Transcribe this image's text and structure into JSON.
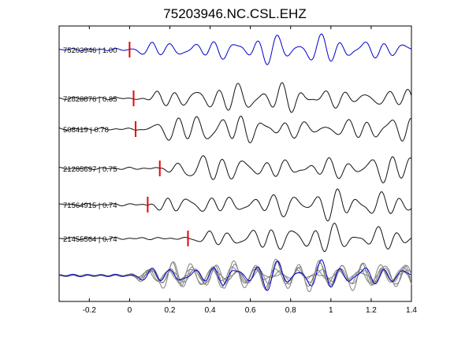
{
  "chart_data": {
    "type": "line",
    "title": "75203946.NC.CSL.EHZ",
    "xlabel": "",
    "ylabel": "",
    "xlim": [
      -0.35,
      1.4
    ],
    "x_ticks": [
      -0.2,
      0,
      0.2,
      0.4,
      0.6,
      0.8,
      1,
      1.2,
      1.4
    ],
    "x_tick_labels": [
      "-0.2",
      "0",
      "0.2",
      "0.4",
      "0.6",
      "0.8",
      "1",
      "1.2",
      "1.4"
    ],
    "grid": false,
    "colors": {
      "reference": "#0000cc",
      "trace": "#111111",
      "overlay": "#808080",
      "pick": "#ee0000",
      "axes": "#000000"
    },
    "traces": [
      {
        "label": "75203946 | 1.00",
        "event_id": "75203946",
        "cc": 1.0,
        "pick_time": 0.0,
        "color": "reference"
      },
      {
        "label": "72828876 | 0.85",
        "event_id": "72828876",
        "cc": 0.85,
        "pick_time": 0.02,
        "color": "trace"
      },
      {
        "label": "508419 | 0.78",
        "event_id": "508419",
        "cc": 0.78,
        "pick_time": 0.03,
        "color": "trace"
      },
      {
        "label": "21285697 | 0.75",
        "event_id": "21285697",
        "cc": 0.75,
        "pick_time": 0.15,
        "color": "trace"
      },
      {
        "label": "71564915 | 0.74",
        "event_id": "71564915",
        "cc": 0.74,
        "pick_time": 0.09,
        "color": "trace"
      },
      {
        "label": "21455564 | 0.74",
        "event_id": "21455564",
        "cc": 0.74,
        "pick_time": 0.29,
        "color": "trace"
      }
    ],
    "stack": {
      "label": "",
      "description_hidden": true
    }
  }
}
